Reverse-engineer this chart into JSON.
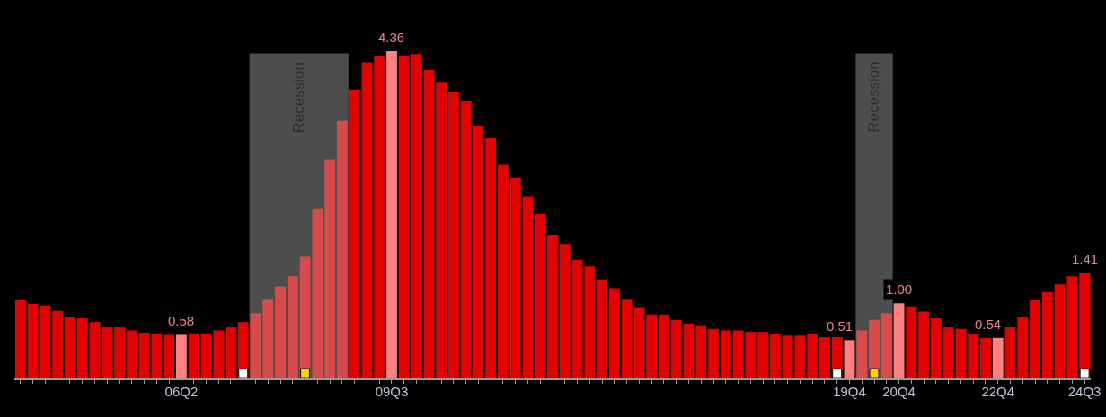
{
  "chart_data": {
    "type": "bar",
    "categories": [
      null,
      null,
      null,
      null,
      null,
      null,
      null,
      null,
      null,
      null,
      null,
      null,
      null,
      "06Q2",
      null,
      null,
      null,
      null,
      null,
      null,
      null,
      null,
      null,
      null,
      null,
      null,
      null,
      null,
      null,
      null,
      "09Q3",
      null,
      null,
      null,
      null,
      null,
      null,
      null,
      null,
      null,
      null,
      null,
      null,
      null,
      null,
      null,
      null,
      null,
      null,
      null,
      null,
      null,
      null,
      null,
      null,
      null,
      null,
      null,
      null,
      null,
      null,
      null,
      null,
      null,
      null,
      null,
      null,
      "19Q4",
      null,
      null,
      null,
      "20Q4",
      null,
      null,
      null,
      null,
      null,
      null,
      null,
      "22Q4",
      null,
      null,
      null,
      null,
      null,
      null,
      "24Q3"
    ],
    "series": [
      {
        "values": [
          1.04,
          0.99,
          0.97,
          0.9,
          0.82,
          0.8,
          0.75,
          0.68,
          0.68,
          0.64,
          0.61,
          0.6,
          0.58,
          0.58,
          0.6,
          0.6,
          0.64,
          0.68,
          0.75,
          0.87,
          1.06,
          1.22,
          1.36,
          1.62,
          2.26,
          2.92,
          3.43,
          3.85,
          4.21,
          4.3,
          4.36,
          4.3,
          4.32,
          4.11,
          3.95,
          3.81,
          3.69,
          3.36,
          3.2,
          2.85,
          2.68,
          2.42,
          2.19,
          1.91,
          1.79,
          1.58,
          1.49,
          1.32,
          1.2,
          1.06,
          0.95,
          0.85,
          0.85,
          0.78,
          0.73,
          0.71,
          0.66,
          0.64,
          0.64,
          0.62,
          0.62,
          0.59,
          0.57,
          0.57,
          0.59,
          0.55,
          0.55,
          0.51,
          0.64,
          0.78,
          0.87,
          1.0,
          0.96,
          0.89,
          0.8,
          0.68,
          0.66,
          0.59,
          0.54,
          0.54,
          0.68,
          0.82,
          1.04,
          1.15,
          1.25,
          1.36,
          1.41
        ],
        "colors": [
          "#e60000",
          "#e60000",
          "#e60000",
          "#e60000",
          "#e60000",
          "#e60000",
          "#e60000",
          "#e60000",
          "#e60000",
          "#e60000",
          "#e60000",
          "#e60000",
          "#e60000",
          "#ff8080",
          "#e60000",
          "#e60000",
          "#e60000",
          "#e60000",
          "#e60000",
          "#d94b4b",
          "#d94b4b",
          "#d94b4b",
          "#d94b4b",
          "#d94b4b",
          "#d94b4b",
          "#d94b4b",
          "#d94b4b",
          "#e60000",
          "#e60000",
          "#e60000",
          "#ff8080",
          "#e60000",
          "#e60000",
          "#e60000",
          "#e60000",
          "#e60000",
          "#e60000",
          "#e60000",
          "#e60000",
          "#e60000",
          "#e60000",
          "#e60000",
          "#e60000",
          "#e60000",
          "#e60000",
          "#e60000",
          "#e60000",
          "#e60000",
          "#e60000",
          "#e60000",
          "#e60000",
          "#e60000",
          "#e60000",
          "#e60000",
          "#e60000",
          "#e60000",
          "#e60000",
          "#e60000",
          "#e60000",
          "#e60000",
          "#e60000",
          "#e60000",
          "#e60000",
          "#e60000",
          "#e60000",
          "#e60000",
          "#e60000",
          "#ff8080",
          "#d94b4b",
          "#d94b4b",
          "#d94b4b",
          "#ff8080",
          "#e60000",
          "#e60000",
          "#e60000",
          "#e60000",
          "#e60000",
          "#e60000",
          "#e60000",
          "#ff8080",
          "#e60000",
          "#e60000",
          "#e60000",
          "#e60000",
          "#e60000",
          "#e60000",
          "#e60000"
        ],
        "value_labels": [
          null,
          null,
          null,
          null,
          null,
          null,
          null,
          null,
          null,
          null,
          null,
          null,
          null,
          "0.58",
          null,
          null,
          null,
          null,
          null,
          null,
          null,
          null,
          null,
          null,
          null,
          null,
          null,
          null,
          null,
          null,
          "4.36",
          null,
          null,
          null,
          null,
          null,
          null,
          null,
          null,
          null,
          null,
          null,
          null,
          null,
          null,
          null,
          null,
          null,
          null,
          null,
          null,
          null,
          null,
          null,
          null,
          null,
          null,
          null,
          null,
          null,
          null,
          null,
          null,
          null,
          null,
          null,
          null,
          "0.51",
          null,
          null,
          null,
          "1.00",
          null,
          null,
          null,
          null,
          null,
          null,
          null,
          "0.54",
          null,
          null,
          null,
          null,
          null,
          null,
          "1.41"
        ]
      },
      {
        "type": "scatter",
        "values": [
          null,
          null,
          null,
          null,
          null,
          null,
          null,
          null,
          null,
          null,
          null,
          null,
          null,
          null,
          null,
          null,
          null,
          null,
          0.07,
          null,
          null,
          null,
          null,
          null,
          null,
          null,
          null,
          null,
          null,
          null,
          null,
          null,
          null,
          null,
          null,
          null,
          null,
          null,
          null,
          null,
          null,
          null,
          null,
          null,
          null,
          null,
          null,
          null,
          null,
          null,
          null,
          null,
          null,
          null,
          null,
          null,
          null,
          null,
          null,
          null,
          null,
          null,
          null,
          null,
          null,
          null,
          0.07,
          null,
          null,
          null,
          null,
          null,
          null,
          null,
          null,
          null,
          null,
          null,
          null,
          null,
          null,
          null,
          null,
          null,
          null,
          null,
          0.07
        ],
        "color": "#ffffff"
      },
      {
        "type": "scatter",
        "values": [
          null,
          null,
          null,
          null,
          null,
          null,
          null,
          null,
          null,
          null,
          null,
          null,
          null,
          null,
          null,
          null,
          null,
          null,
          null,
          null,
          null,
          null,
          null,
          0.07,
          null,
          null,
          null,
          null,
          null,
          null,
          null,
          null,
          null,
          null,
          null,
          null,
          null,
          null,
          null,
          null,
          null,
          null,
          null,
          null,
          null,
          null,
          null,
          null,
          null,
          null,
          null,
          null,
          null,
          null,
          null,
          null,
          null,
          null,
          null,
          null,
          null,
          null,
          null,
          null,
          null,
          null,
          null,
          null,
          null,
          0.07,
          null,
          null,
          null,
          null,
          null,
          null,
          null,
          null,
          null,
          null,
          null,
          null,
          null,
          null,
          null,
          null,
          null
        ],
        "color": "#ffd000"
      }
    ],
    "annotations": [
      "Recession",
      "Recession"
    ],
    "tick_labels": "x",
    "grid": false,
    "marker": "square"
  }
}
